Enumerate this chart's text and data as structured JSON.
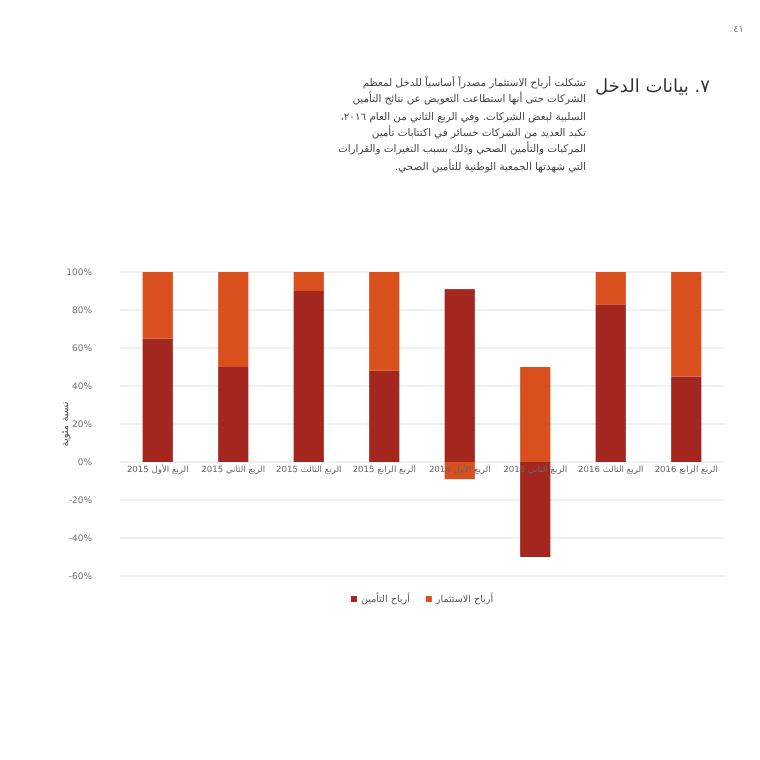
{
  "chart_data": {
    "type": "bar",
    "title": "٧. بيانات الدخل",
    "subtitle": "تشكلت أرباح الاستثمار مصدراً أساسياً للدخل لمعظم الشركات حتى أنها استطاعت التعويض عن نتائج التأمين السلبية لبعض الشركات. وفي الربع الثاني من العام ٢٠١٦، تكبد العديد من الشركات خسائر في اكتتابات تأمين المركبات والتأمين الصحي وذلك بسبب التغيرات والقرارات التي شهدتها الجمعية الوطنية للتأمين الصحي.",
    "annotations": [
      "٤١"
    ],
    "ylabel": "نسبة مئوية",
    "categories": [
      "الربع الأول 2015",
      "الربع الثاني 2015",
      "الربع الثالث 2015",
      "الربع الرابع 2015",
      "الربع الأول 2016",
      "الربع الثاني 2016",
      "الربع الثالث 2016",
      "الربع الرابع 2016"
    ],
    "series": [
      {
        "name": "أرباح التأمين",
        "color": "#a3271f",
        "values": [
          65,
          50,
          90,
          48,
          91,
          -50,
          83,
          45
        ]
      },
      {
        "name": "أرباح الاستثمار",
        "color": "#d9501e",
        "values": [
          35,
          50,
          10,
          52,
          -9,
          50,
          17,
          55
        ]
      }
    ],
    "stacked": true,
    "ylim": [
      -60,
      100
    ],
    "yticks": [
      {
        "value": -60,
        "label": "-60%"
      },
      {
        "value": -40,
        "label": "-40%"
      },
      {
        "value": -20,
        "label": "-20%"
      },
      {
        "value": 0,
        "label": "0%"
      },
      {
        "value": 20,
        "label": "20%"
      },
      {
        "value": 40,
        "label": "40%"
      },
      {
        "value": 60,
        "label": "60%"
      },
      {
        "value": 80,
        "label": "80%"
      },
      {
        "value": 100,
        "label": "100%"
      }
    ],
    "grid": "y",
    "legend": "bottom"
  }
}
